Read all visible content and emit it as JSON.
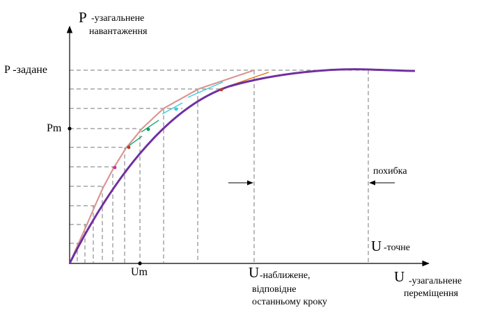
{
  "labels": {
    "p_axis_letter": "P",
    "p_axis_text_line1": "-узагальнене",
    "p_axis_text_line2": "навантаження",
    "p_given": "P -задане",
    "pm": "Pm",
    "um": "Um",
    "u_approx_letter": "U",
    "u_approx_line1": "-наближене,",
    "u_approx_line2": "відповідне",
    "u_approx_line3": "останньому кроку",
    "u_exact_letter": "U",
    "u_exact_text": "-точне",
    "u_axis_letter": "U",
    "u_axis_text_line1": "-узагальнене",
    "u_axis_text_line2": "переміщення",
    "error": "похибка"
  },
  "colors": {
    "exact_curve": "#7030a0",
    "approx_curve": "#d99694",
    "dashed": "#777777",
    "axis": "#000000",
    "tangent_orange": "#e36c09",
    "tangent_cyan": "#33ccdd",
    "tangent_green": "#00a060",
    "marker_red": "#c0392b",
    "marker_magenta": "#cc3399"
  },
  "icons": {
    "axis_arrow": "arrowhead",
    "error_arrow": "arrowhead"
  }
}
